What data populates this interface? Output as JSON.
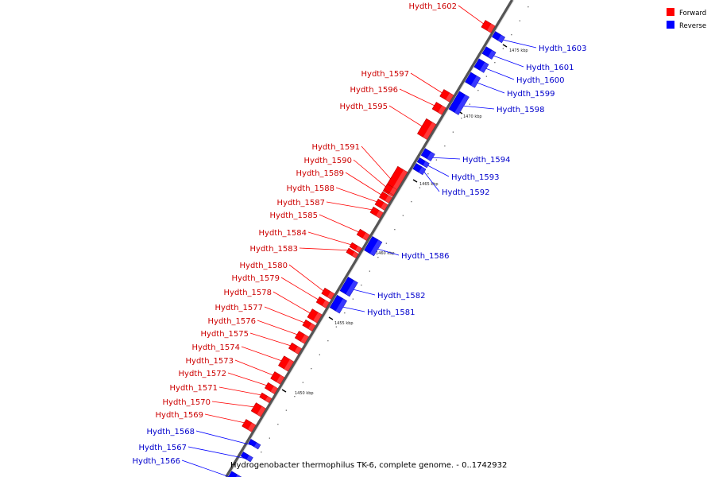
{
  "legend": {
    "forward_label": "Forward",
    "reverse_label": "Reverse",
    "forward_color": "#ff0000",
    "reverse_color": "#0000ff"
  },
  "caption": "Hydrogenobacter thermophilus TK-6, complete genome. - 0..1742932",
  "scale": {
    "unit": "kbp",
    "ticks": [
      "1450 kbp",
      "1455 kbp",
      "1460 kbp",
      "1465 kbp",
      "1470 kbp",
      "1475 kbp"
    ]
  },
  "genes": [
    {
      "id": "Hydth_1602",
      "strand": "forward"
    },
    {
      "id": "Hydth_1603",
      "strand": "reverse"
    },
    {
      "id": "Hydth_1601",
      "strand": "reverse"
    },
    {
      "id": "Hydth_1600",
      "strand": "reverse"
    },
    {
      "id": "Hydth_1599",
      "strand": "reverse"
    },
    {
      "id": "Hydth_1598",
      "strand": "reverse"
    },
    {
      "id": "Hydth_1597",
      "strand": "forward"
    },
    {
      "id": "Hydth_1596",
      "strand": "forward"
    },
    {
      "id": "Hydth_1595",
      "strand": "forward"
    },
    {
      "id": "Hydth_1594",
      "strand": "reverse"
    },
    {
      "id": "Hydth_1593",
      "strand": "reverse"
    },
    {
      "id": "Hydth_1592",
      "strand": "reverse"
    },
    {
      "id": "Hydth_1591",
      "strand": "forward"
    },
    {
      "id": "Hydth_1590",
      "strand": "forward"
    },
    {
      "id": "Hydth_1589",
      "strand": "forward"
    },
    {
      "id": "Hydth_1588",
      "strand": "forward"
    },
    {
      "id": "Hydth_1587",
      "strand": "forward"
    },
    {
      "id": "Hydth_1585",
      "strand": "forward"
    },
    {
      "id": "Hydth_1586",
      "strand": "reverse"
    },
    {
      "id": "Hydth_1584",
      "strand": "forward"
    },
    {
      "id": "Hydth_1583",
      "strand": "forward"
    },
    {
      "id": "Hydth_1582",
      "strand": "reverse"
    },
    {
      "id": "Hydth_1581",
      "strand": "reverse"
    },
    {
      "id": "Hydth_1580",
      "strand": "forward"
    },
    {
      "id": "Hydth_1579",
      "strand": "forward"
    },
    {
      "id": "Hydth_1578",
      "strand": "forward"
    },
    {
      "id": "Hydth_1577",
      "strand": "forward"
    },
    {
      "id": "Hydth_1576",
      "strand": "forward"
    },
    {
      "id": "Hydth_1575",
      "strand": "forward"
    },
    {
      "id": "Hydth_1574",
      "strand": "forward"
    },
    {
      "id": "Hydth_1573",
      "strand": "forward"
    },
    {
      "id": "Hydth_1572",
      "strand": "forward"
    },
    {
      "id": "Hydth_1571",
      "strand": "forward"
    },
    {
      "id": "Hydth_1570",
      "strand": "forward"
    },
    {
      "id": "Hydth_1569",
      "strand": "forward"
    },
    {
      "id": "Hydth_1568",
      "strand": "reverse"
    },
    {
      "id": "Hydth_1567",
      "strand": "reverse"
    },
    {
      "id": "Hydth_1566",
      "strand": "reverse"
    }
  ]
}
